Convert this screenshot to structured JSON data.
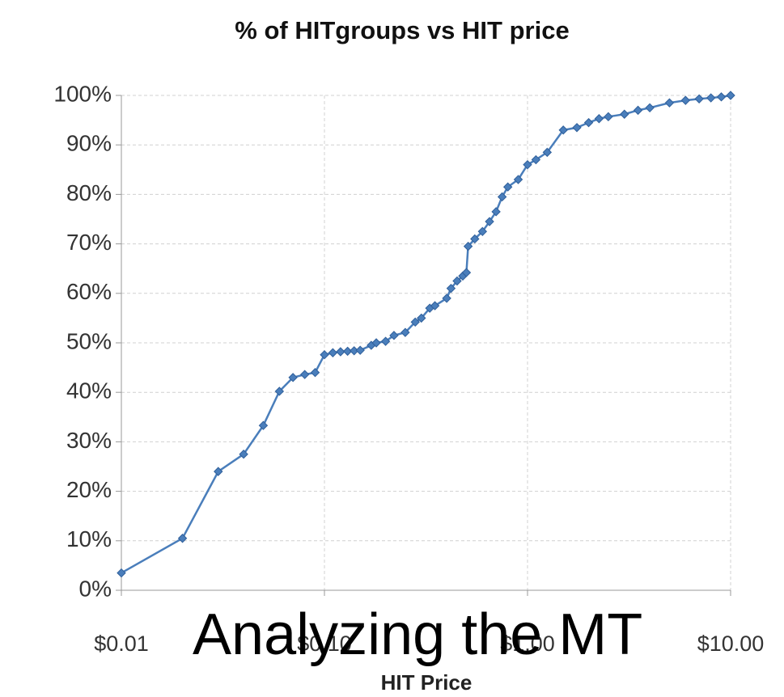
{
  "chart_data": {
    "type": "line",
    "title": "% of HITgroups vs HIT price",
    "x_label": "HIT Price",
    "annotation": "Analyzing the MT",
    "color": "#4a7ebb",
    "xscale": "log",
    "grid": true,
    "x": [
      0.01,
      0.02,
      0.03,
      0.04,
      0.05,
      0.06,
      0.07,
      0.08,
      0.09,
      0.1,
      0.11,
      0.12,
      0.13,
      0.14,
      0.15,
      0.17,
      0.18,
      0.2,
      0.22,
      0.25,
      0.28,
      0.3,
      0.33,
      0.35,
      0.4,
      0.42,
      0.45,
      0.48,
      0.5,
      0.51,
      0.55,
      0.6,
      0.65,
      0.7,
      0.75,
      0.8,
      0.9,
      1.0,
      1.1,
      1.25,
      1.5,
      1.75,
      2.0,
      2.25,
      2.5,
      3.0,
      3.5,
      4.0,
      5.0,
      6.0,
      7.0,
      8.0,
      9.0,
      10.0
    ],
    "values": [
      3.5,
      10.5,
      24,
      27.5,
      33.3,
      40.2,
      43,
      43.6,
      44,
      47.6,
      48,
      48.2,
      48.3,
      48.4,
      48.5,
      49.5,
      50,
      50.3,
      51.5,
      52.1,
      54.2,
      55,
      57,
      57.5,
      59,
      61,
      62.5,
      63.5,
      64.2,
      69.5,
      71,
      72.5,
      74.5,
      76.5,
      79.5,
      81.5,
      83,
      86,
      87,
      88.5,
      93,
      93.5,
      94.5,
      95.3,
      95.7,
      96.2,
      97,
      97.5,
      98.5,
      99,
      99.3,
      99.5,
      99.7,
      100
    ],
    "xlim": [
      0.01,
      10
    ],
    "xticks": [
      {
        "value": 0.01,
        "label": "$0.01"
      },
      {
        "value": 0.1,
        "label": "$0.10"
      },
      {
        "value": 1,
        "label": "$1.00"
      },
      {
        "value": 10,
        "label": "$10.00"
      }
    ],
    "ylim": [
      0,
      100
    ],
    "yticks": [
      {
        "value": 0,
        "label": "0%"
      },
      {
        "value": 10,
        "label": "10%"
      },
      {
        "value": 20,
        "label": "20%"
      },
      {
        "value": 30,
        "label": "30%"
      },
      {
        "value": 40,
        "label": "40%"
      },
      {
        "value": 50,
        "label": "50%"
      },
      {
        "value": 60,
        "label": "60%"
      },
      {
        "value": 70,
        "label": "70%"
      },
      {
        "value": 80,
        "label": "80%"
      },
      {
        "value": 90,
        "label": "90%"
      },
      {
        "value": 100,
        "label": "100%"
      }
    ]
  }
}
